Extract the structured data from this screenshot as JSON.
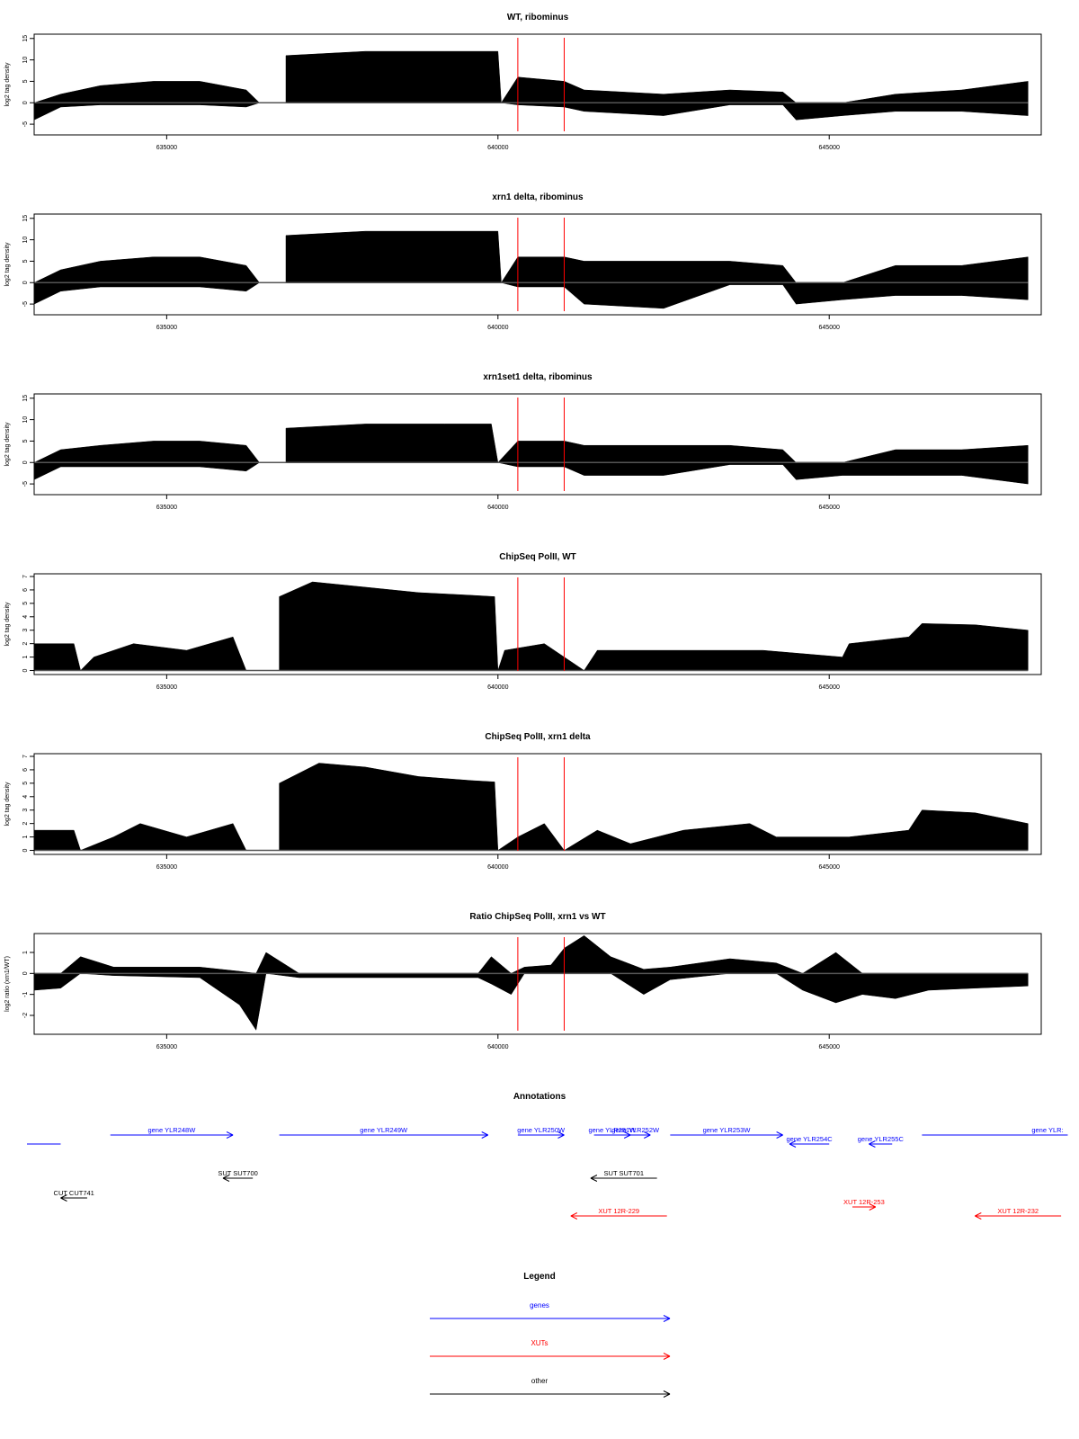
{
  "chart_data": [
    {
      "type": "area",
      "title": "WT, ribominus",
      "ylabel": "log2 tag density",
      "xlim": [
        633000,
        648200
      ],
      "ylim": [
        -7.5,
        16
      ],
      "yticks": [
        -5,
        0,
        5,
        10,
        15
      ],
      "xticks": [
        635000,
        640000,
        645000
      ],
      "markers_x": [
        640300,
        641000
      ],
      "signal": [
        {
          "x": 633000,
          "top": 0,
          "bottom": -4
        },
        {
          "x": 633400,
          "top": 2,
          "bottom": -1
        },
        {
          "x": 634000,
          "top": 4,
          "bottom": -0.5
        },
        {
          "x": 634800,
          "top": 5,
          "bottom": -0.5
        },
        {
          "x": 635500,
          "top": 5,
          "bottom": -0.5
        },
        {
          "x": 636200,
          "top": 3,
          "bottom": -1
        },
        {
          "x": 636400,
          "top": 0,
          "bottom": 0
        },
        {
          "x": 636800,
          "top": 0,
          "bottom": 0
        },
        {
          "x": 636800,
          "top": 11,
          "bottom": 0
        },
        {
          "x": 638000,
          "top": 12,
          "bottom": 0
        },
        {
          "x": 639200,
          "top": 12,
          "bottom": 0
        },
        {
          "x": 640000,
          "top": 12,
          "bottom": 0
        },
        {
          "x": 640050,
          "top": 0,
          "bottom": 0
        },
        {
          "x": 640300,
          "top": 6,
          "bottom": -0.5
        },
        {
          "x": 641000,
          "top": 5,
          "bottom": -1
        },
        {
          "x": 641300,
          "top": 3,
          "bottom": -2
        },
        {
          "x": 642500,
          "top": 2,
          "bottom": -3
        },
        {
          "x": 643500,
          "top": 3,
          "bottom": -0.5
        },
        {
          "x": 644300,
          "top": 2.5,
          "bottom": -0.5
        },
        {
          "x": 644500,
          "top": 0,
          "bottom": -4
        },
        {
          "x": 645200,
          "top": 0,
          "bottom": -3
        },
        {
          "x": 646000,
          "top": 2,
          "bottom": -2
        },
        {
          "x": 647000,
          "top": 3,
          "bottom": -2
        },
        {
          "x": 648000,
          "top": 5,
          "bottom": -3
        }
      ]
    },
    {
      "type": "area",
      "title": "xrn1 delta, ribominus",
      "ylabel": "log2 tag density",
      "xlim": [
        633000,
        648200
      ],
      "ylim": [
        -7.5,
        16
      ],
      "yticks": [
        -5,
        0,
        5,
        10,
        15
      ],
      "xticks": [
        635000,
        640000,
        645000
      ],
      "markers_x": [
        640300,
        641000
      ],
      "signal": [
        {
          "x": 633000,
          "top": 0,
          "bottom": -5
        },
        {
          "x": 633400,
          "top": 3,
          "bottom": -2
        },
        {
          "x": 634000,
          "top": 5,
          "bottom": -1
        },
        {
          "x": 634800,
          "top": 6,
          "bottom": -1
        },
        {
          "x": 635500,
          "top": 6,
          "bottom": -1
        },
        {
          "x": 636200,
          "top": 4,
          "bottom": -2
        },
        {
          "x": 636400,
          "top": 0,
          "bottom": 0
        },
        {
          "x": 636800,
          "top": 0,
          "bottom": 0
        },
        {
          "x": 636800,
          "top": 11,
          "bottom": 0
        },
        {
          "x": 638000,
          "top": 12,
          "bottom": 0
        },
        {
          "x": 639200,
          "top": 12,
          "bottom": 0
        },
        {
          "x": 640000,
          "top": 12,
          "bottom": 0
        },
        {
          "x": 640050,
          "top": 0,
          "bottom": 0
        },
        {
          "x": 640300,
          "top": 6,
          "bottom": -1
        },
        {
          "x": 641000,
          "top": 6,
          "bottom": -1
        },
        {
          "x": 641300,
          "top": 5,
          "bottom": -5
        },
        {
          "x": 642500,
          "top": 5,
          "bottom": -6
        },
        {
          "x": 643500,
          "top": 5,
          "bottom": -0.5
        },
        {
          "x": 644300,
          "top": 4,
          "bottom": -0.5
        },
        {
          "x": 644500,
          "top": 0,
          "bottom": -5
        },
        {
          "x": 645200,
          "top": 0,
          "bottom": -4
        },
        {
          "x": 646000,
          "top": 4,
          "bottom": -3
        },
        {
          "x": 647000,
          "top": 4,
          "bottom": -3
        },
        {
          "x": 648000,
          "top": 6,
          "bottom": -4
        }
      ]
    },
    {
      "type": "area",
      "title": "xrn1set1 delta, ribominus",
      "ylabel": "log2 tag density",
      "xlim": [
        633000,
        648200
      ],
      "ylim": [
        -7.5,
        16
      ],
      "yticks": [
        -5,
        0,
        5,
        10,
        15
      ],
      "xticks": [
        635000,
        640000,
        645000
      ],
      "markers_x": [
        640300,
        641000
      ],
      "signal": [
        {
          "x": 633000,
          "top": 0,
          "bottom": -4
        },
        {
          "x": 633400,
          "top": 3,
          "bottom": -1
        },
        {
          "x": 634000,
          "top": 4,
          "bottom": -1
        },
        {
          "x": 634800,
          "top": 5,
          "bottom": -1
        },
        {
          "x": 635500,
          "top": 5,
          "bottom": -1
        },
        {
          "x": 636200,
          "top": 4,
          "bottom": -2
        },
        {
          "x": 636400,
          "top": 0,
          "bottom": 0
        },
        {
          "x": 636800,
          "top": 0,
          "bottom": 0
        },
        {
          "x": 636800,
          "top": 8,
          "bottom": 0
        },
        {
          "x": 638000,
          "top": 9,
          "bottom": 0
        },
        {
          "x": 639200,
          "top": 9,
          "bottom": 0
        },
        {
          "x": 639900,
          "top": 9,
          "bottom": 0
        },
        {
          "x": 640000,
          "top": 0,
          "bottom": 0
        },
        {
          "x": 640300,
          "top": 5,
          "bottom": -1
        },
        {
          "x": 641000,
          "top": 5,
          "bottom": -1
        },
        {
          "x": 641300,
          "top": 4,
          "bottom": -3
        },
        {
          "x": 642500,
          "top": 4,
          "bottom": -3
        },
        {
          "x": 643500,
          "top": 4,
          "bottom": -0.5
        },
        {
          "x": 644300,
          "top": 3,
          "bottom": -0.5
        },
        {
          "x": 644500,
          "top": 0,
          "bottom": -4
        },
        {
          "x": 645200,
          "top": 0,
          "bottom": -3
        },
        {
          "x": 646000,
          "top": 3,
          "bottom": -3
        },
        {
          "x": 647000,
          "top": 3,
          "bottom": -3
        },
        {
          "x": 648000,
          "top": 4,
          "bottom": -5
        }
      ]
    },
    {
      "type": "area",
      "title": "ChipSeq PolII, WT",
      "ylabel": "log2 tag density",
      "xlim": [
        633000,
        648200
      ],
      "ylim": [
        -0.3,
        7.2
      ],
      "yticks": [
        0,
        1,
        2,
        3,
        4,
        5,
        6,
        7
      ],
      "xticks": [
        635000,
        640000,
        645000
      ],
      "markers_x": [
        640300,
        641000
      ],
      "signal": [
        {
          "x": 633000,
          "top": 2,
          "bottom": 0
        },
        {
          "x": 633600,
          "top": 2,
          "bottom": 0
        },
        {
          "x": 633700,
          "top": 0,
          "bottom": 0
        },
        {
          "x": 633900,
          "top": 1,
          "bottom": 0
        },
        {
          "x": 634500,
          "top": 2,
          "bottom": 0
        },
        {
          "x": 635300,
          "top": 1.5,
          "bottom": 0
        },
        {
          "x": 636000,
          "top": 2.5,
          "bottom": 0
        },
        {
          "x": 636200,
          "top": 0,
          "bottom": 0
        },
        {
          "x": 636700,
          "top": 0,
          "bottom": 0
        },
        {
          "x": 636700,
          "top": 5.5,
          "bottom": 0
        },
        {
          "x": 637200,
          "top": 6.6,
          "bottom": 0
        },
        {
          "x": 638000,
          "top": 6.2,
          "bottom": 0
        },
        {
          "x": 638800,
          "top": 5.8,
          "bottom": 0
        },
        {
          "x": 639600,
          "top": 5.6,
          "bottom": 0
        },
        {
          "x": 639950,
          "top": 5.5,
          "bottom": 0
        },
        {
          "x": 640000,
          "top": 0,
          "bottom": 0
        },
        {
          "x": 640100,
          "top": 1.5,
          "bottom": 0
        },
        {
          "x": 640700,
          "top": 2,
          "bottom": 0
        },
        {
          "x": 641300,
          "top": 0,
          "bottom": 0
        },
        {
          "x": 641500,
          "top": 1.5,
          "bottom": 0
        },
        {
          "x": 642800,
          "top": 1.5,
          "bottom": 0
        },
        {
          "x": 644000,
          "top": 1.5,
          "bottom": 0
        },
        {
          "x": 645200,
          "top": 1,
          "bottom": 0
        },
        {
          "x": 645300,
          "top": 2,
          "bottom": 0
        },
        {
          "x": 646200,
          "top": 2.5,
          "bottom": 0
        },
        {
          "x": 646400,
          "top": 3.5,
          "bottom": 0
        },
        {
          "x": 647200,
          "top": 3.4,
          "bottom": 0
        },
        {
          "x": 648000,
          "top": 3,
          "bottom": 0
        }
      ]
    },
    {
      "type": "area",
      "title": "ChipSeq PolII, xrn1 delta",
      "ylabel": "log2 tag density",
      "xlim": [
        633000,
        648200
      ],
      "ylim": [
        -0.3,
        7.2
      ],
      "yticks": [
        0,
        1,
        2,
        3,
        4,
        5,
        6,
        7
      ],
      "xticks": [
        635000,
        640000,
        645000
      ],
      "markers_x": [
        640300,
        641000
      ],
      "signal": [
        {
          "x": 633000,
          "top": 1.5,
          "bottom": 0
        },
        {
          "x": 633600,
          "top": 1.5,
          "bottom": 0
        },
        {
          "x": 633700,
          "top": 0,
          "bottom": 0
        },
        {
          "x": 634200,
          "top": 1,
          "bottom": 0
        },
        {
          "x": 634600,
          "top": 2,
          "bottom": 0
        },
        {
          "x": 635300,
          "top": 1,
          "bottom": 0
        },
        {
          "x": 636000,
          "top": 2,
          "bottom": 0
        },
        {
          "x": 636200,
          "top": 0,
          "bottom": 0
        },
        {
          "x": 636700,
          "top": 0,
          "bottom": 0
        },
        {
          "x": 636700,
          "top": 5,
          "bottom": 0
        },
        {
          "x": 637300,
          "top": 6.5,
          "bottom": 0
        },
        {
          "x": 638000,
          "top": 6.2,
          "bottom": 0
        },
        {
          "x": 638800,
          "top": 5.5,
          "bottom": 0
        },
        {
          "x": 639600,
          "top": 5.2,
          "bottom": 0
        },
        {
          "x": 639950,
          "top": 5.1,
          "bottom": 0
        },
        {
          "x": 640000,
          "top": 0,
          "bottom": 0
        },
        {
          "x": 640300,
          "top": 1,
          "bottom": 0
        },
        {
          "x": 640700,
          "top": 2,
          "bottom": 0
        },
        {
          "x": 641000,
          "top": 0,
          "bottom": 0
        },
        {
          "x": 641500,
          "top": 1.5,
          "bottom": 0
        },
        {
          "x": 642000,
          "top": 0.5,
          "bottom": 0
        },
        {
          "x": 642800,
          "top": 1.5,
          "bottom": 0
        },
        {
          "x": 643800,
          "top": 2,
          "bottom": 0
        },
        {
          "x": 644200,
          "top": 1,
          "bottom": 0
        },
        {
          "x": 645300,
          "top": 1,
          "bottom": 0
        },
        {
          "x": 646200,
          "top": 1.5,
          "bottom": 0
        },
        {
          "x": 646400,
          "top": 3,
          "bottom": 0
        },
        {
          "x": 647200,
          "top": 2.8,
          "bottom": 0
        },
        {
          "x": 648000,
          "top": 2,
          "bottom": 0
        }
      ]
    },
    {
      "type": "area",
      "title": "Ratio ChipSeq PolII, xrn1 vs WT",
      "ylabel": "log2 ratio (xrn1/WT)",
      "xlim": [
        633000,
        648200
      ],
      "ylim": [
        -2.9,
        1.9
      ],
      "yticks": [
        -2,
        -1,
        0,
        1
      ],
      "xticks": [
        635000,
        640000,
        645000
      ],
      "markers_x": [
        640300,
        641000
      ],
      "signal": [
        {
          "x": 633000,
          "top": 0,
          "bottom": -0.8
        },
        {
          "x": 633400,
          "top": 0,
          "bottom": -0.7
        },
        {
          "x": 633700,
          "top": 0.8,
          "bottom": 0
        },
        {
          "x": 634200,
          "top": 0.3,
          "bottom": -0.1
        },
        {
          "x": 635500,
          "top": 0.3,
          "bottom": -0.2
        },
        {
          "x": 636100,
          "top": 0.1,
          "bottom": -1.5
        },
        {
          "x": 636350,
          "top": 0,
          "bottom": -2.7
        },
        {
          "x": 636500,
          "top": 1,
          "bottom": 0
        },
        {
          "x": 637000,
          "top": 0,
          "bottom": -0.2
        },
        {
          "x": 638500,
          "top": 0,
          "bottom": -0.2
        },
        {
          "x": 639700,
          "top": 0,
          "bottom": -0.2
        },
        {
          "x": 639900,
          "top": 0.8,
          "bottom": -0.5
        },
        {
          "x": 640200,
          "top": 0,
          "bottom": -1
        },
        {
          "x": 640400,
          "top": 0.3,
          "bottom": 0
        },
        {
          "x": 640800,
          "top": 0.4,
          "bottom": 0
        },
        {
          "x": 641000,
          "top": 1.2,
          "bottom": 0
        },
        {
          "x": 641300,
          "top": 1.8,
          "bottom": 0
        },
        {
          "x": 641700,
          "top": 0.8,
          "bottom": 0
        },
        {
          "x": 642200,
          "top": 0.2,
          "bottom": -1
        },
        {
          "x": 642600,
          "top": 0.3,
          "bottom": -0.3
        },
        {
          "x": 643500,
          "top": 0.7,
          "bottom": 0
        },
        {
          "x": 644200,
          "top": 0.5,
          "bottom": 0
        },
        {
          "x": 644600,
          "top": 0,
          "bottom": -0.8
        },
        {
          "x": 645100,
          "top": 1,
          "bottom": -1.4
        },
        {
          "x": 645500,
          "top": 0,
          "bottom": -1
        },
        {
          "x": 646000,
          "top": 0,
          "bottom": -1.2
        },
        {
          "x": 646500,
          "top": 0,
          "bottom": -0.8
        },
        {
          "x": 647200,
          "top": 0,
          "bottom": -0.7
        },
        {
          "x": 648000,
          "top": 0,
          "bottom": -0.6
        }
      ]
    }
  ],
  "annotations": {
    "title": "Annotations",
    "colors": {
      "genes": "#0000ff",
      "xuts": "#ff0000",
      "other": "#000000"
    },
    "items": [
      {
        "label": "",
        "category": "genes",
        "start": 632600,
        "end": 633400,
        "strand": "none",
        "lane": 1
      },
      {
        "label": "gene YLR248W",
        "category": "genes",
        "start": 634150,
        "end": 636000,
        "strand": "+",
        "lane": 0
      },
      {
        "label": "gene YLR249W",
        "category": "genes",
        "start": 636700,
        "end": 639850,
        "strand": "+",
        "lane": 0
      },
      {
        "label": "gene YLR250W",
        "category": "genes",
        "start": 640300,
        "end": 641000,
        "strand": "+",
        "lane": 0
      },
      {
        "label": "gene YLR251W",
        "category": "genes",
        "start": 641450,
        "end": 642000,
        "strand": "+",
        "lane": 0
      },
      {
        "label": "gene YLR252W",
        "category": "genes",
        "start": 641850,
        "end": 642300,
        "strand": "+",
        "lane": 0
      },
      {
        "label": "gene YLR253W",
        "category": "genes",
        "start": 642600,
        "end": 644300,
        "strand": "+",
        "lane": 0
      },
      {
        "label": "gene YLR254C",
        "category": "genes",
        "start": 644400,
        "end": 645000,
        "strand": "-",
        "lane": 1
      },
      {
        "label": "gene YLR255C",
        "category": "genes",
        "start": 645600,
        "end": 645950,
        "strand": "-",
        "lane": 1
      },
      {
        "label": "gene YLR:",
        "category": "genes",
        "start": 646400,
        "end": 648600,
        "strand": "none",
        "lane": 0
      },
      {
        "label": "SUT SUT700",
        "category": "other",
        "start": 635850,
        "end": 636300,
        "strand": "-",
        "lane": 2
      },
      {
        "label": "SUT SUT701",
        "category": "other",
        "start": 641400,
        "end": 642400,
        "strand": "-",
        "lane": 2
      },
      {
        "label": "CUT CUT741",
        "category": "other",
        "start": 633400,
        "end": 633800,
        "strand": "-",
        "lane": 3
      },
      {
        "label": "XUT 12R-229",
        "category": "xuts",
        "start": 641100,
        "end": 642550,
        "strand": "-",
        "lane": 4
      },
      {
        "label": "XUT 12R-253",
        "category": "xuts",
        "start": 645350,
        "end": 645700,
        "strand": "+",
        "lane": 3.5
      },
      {
        "label": "XUT 12R-232",
        "category": "xuts",
        "start": 647200,
        "end": 648500,
        "strand": "-",
        "lane": 4
      }
    ]
  },
  "legend": {
    "title": "Legend",
    "items": [
      {
        "label": "genes",
        "color": "#0000ff"
      },
      {
        "label": "XUTs",
        "color": "#ff0000"
      },
      {
        "label": "other",
        "color": "#000000"
      }
    ]
  }
}
